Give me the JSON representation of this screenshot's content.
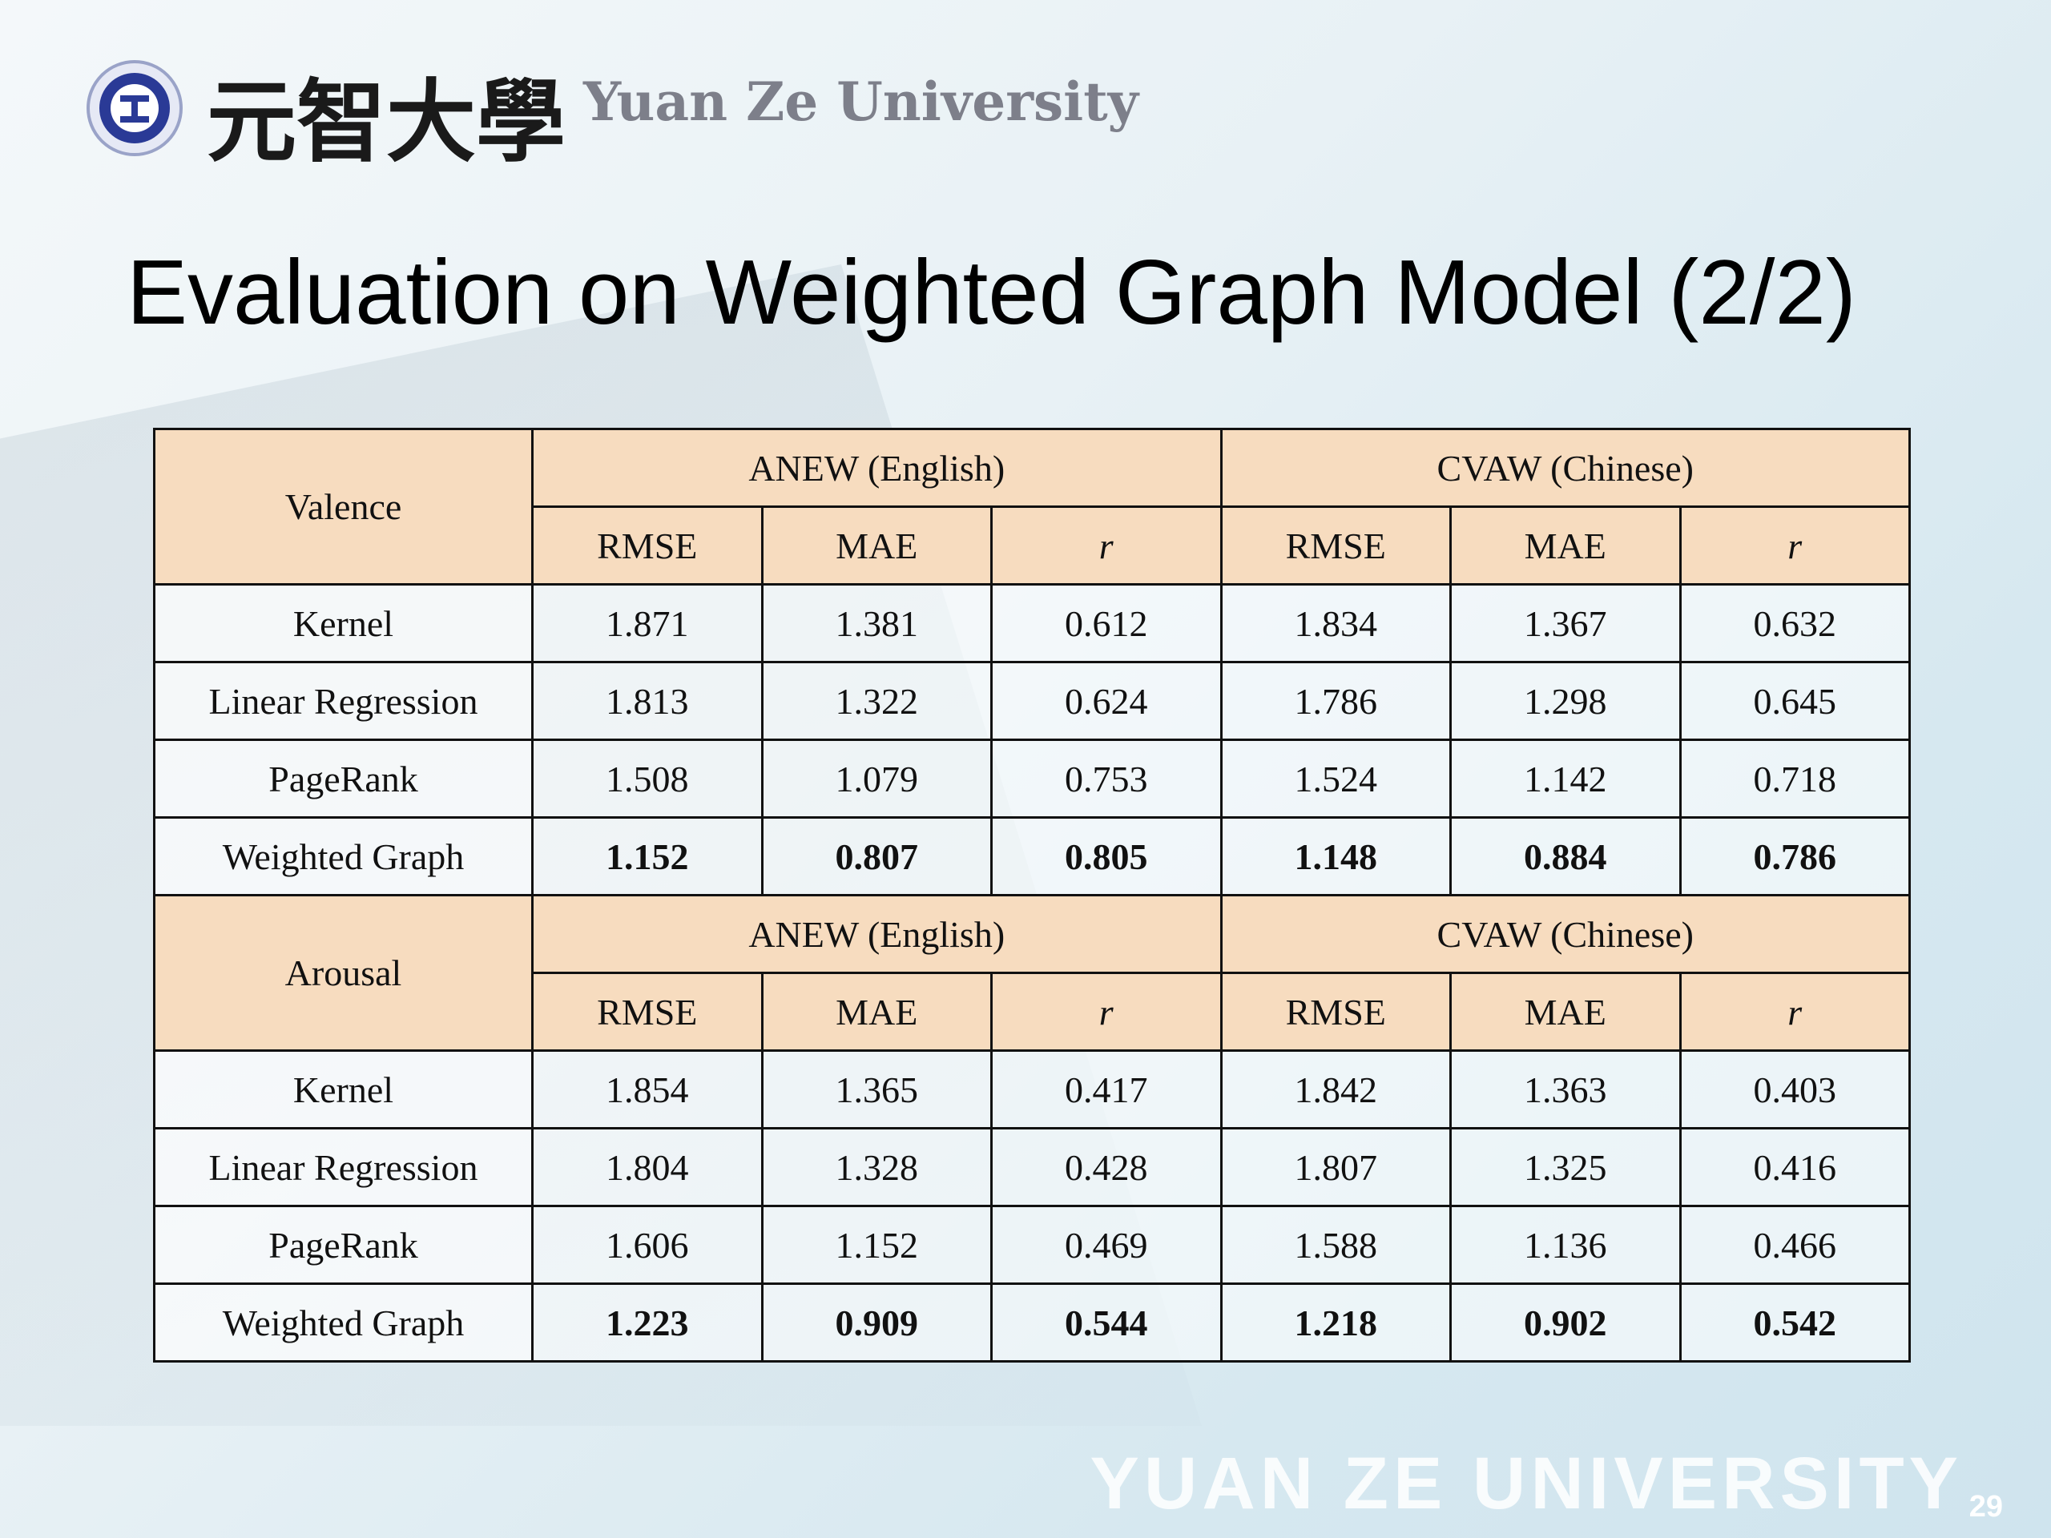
{
  "header": {
    "logo_text_cn": "元智大學",
    "logo_text_en": "Yuan Ze University"
  },
  "title": "Evaluation on Weighted Graph Model (2/2)",
  "tables": [
    {
      "label": "Valence",
      "groups": [
        "ANEW (English)",
        "CVAW (Chinese)"
      ],
      "metrics": [
        "RMSE",
        "MAE",
        "r",
        "RMSE",
        "MAE",
        "r"
      ],
      "rows": [
        {
          "name": "Kernel",
          "values": [
            1.871,
            1.381,
            0.612,
            1.834,
            1.367,
            0.632
          ]
        },
        {
          "name": "Linear Regression",
          "values": [
            1.813,
            1.322,
            0.624,
            1.786,
            1.298,
            0.645
          ]
        },
        {
          "name": "PageRank",
          "values": [
            1.508,
            1.079,
            0.753,
            1.524,
            1.142,
            0.718
          ]
        },
        {
          "name": "Weighted Graph",
          "values": [
            1.152,
            0.807,
            0.805,
            1.148,
            0.884,
            0.786
          ]
        }
      ]
    },
    {
      "label": "Arousal",
      "groups": [
        "ANEW (English)",
        "CVAW (Chinese)"
      ],
      "metrics": [
        "RMSE",
        "MAE",
        "r",
        "RMSE",
        "MAE",
        "r"
      ],
      "rows": [
        {
          "name": "Kernel",
          "values": [
            1.854,
            1.365,
            0.417,
            1.842,
            1.363,
            0.403
          ]
        },
        {
          "name": "Linear Regression",
          "values": [
            1.804,
            1.328,
            0.428,
            1.807,
            1.325,
            0.416
          ]
        },
        {
          "name": "PageRank",
          "values": [
            1.606,
            1.152,
            0.469,
            1.588,
            1.136,
            0.466
          ]
        },
        {
          "name": "Weighted Graph",
          "values": [
            1.223,
            0.909,
            0.544,
            1.218,
            0.902,
            0.542
          ]
        }
      ]
    }
  ],
  "footer": {
    "watermark": "YUAN ZE UNIVERSITY",
    "page_number": "29"
  }
}
